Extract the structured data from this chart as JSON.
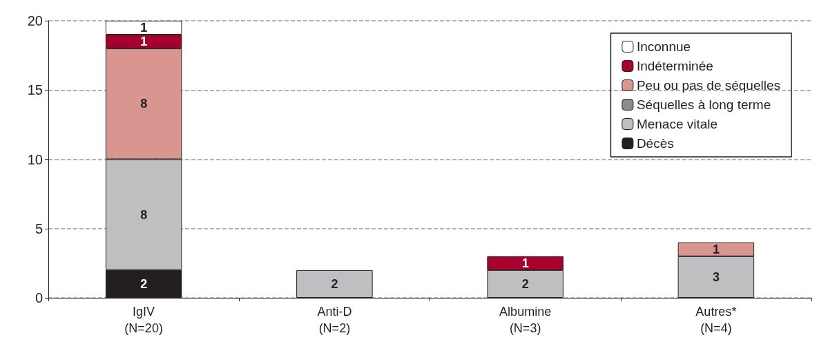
{
  "chart_data": {
    "type": "bar",
    "stacked": true,
    "categories": [
      "IgIV\n(N=20)",
      "Anti-D\n(N=2)",
      "Albumine\n(N=3)",
      "Autres*\n(N=4)"
    ],
    "series": [
      {
        "name": "Décès",
        "color": "#231f20",
        "values": [
          2,
          null,
          null,
          null
        ]
      },
      {
        "name": "Menace vitale",
        "color": "#bfbfc1",
        "values": [
          8,
          2,
          2,
          3
        ]
      },
      {
        "name": "Séquelles à long terme",
        "color": "#8c8c8e",
        "values": [
          null,
          null,
          null,
          null
        ]
      },
      {
        "name": "Peu ou pas de séquelles",
        "color": "#d9958f",
        "values": [
          8,
          null,
          null,
          1
        ]
      },
      {
        "name": "Indéterminée",
        "color": "#a6002f",
        "values": [
          1,
          null,
          1,
          null
        ]
      },
      {
        "name": "Inconnue",
        "color": "#ffffff",
        "values": [
          1,
          null,
          null,
          null
        ]
      }
    ],
    "ylim": [
      0,
      20
    ],
    "yticks": [
      0,
      5,
      10,
      15,
      20
    ],
    "grid": "y",
    "legend": "top right",
    "data_labels": true
  }
}
